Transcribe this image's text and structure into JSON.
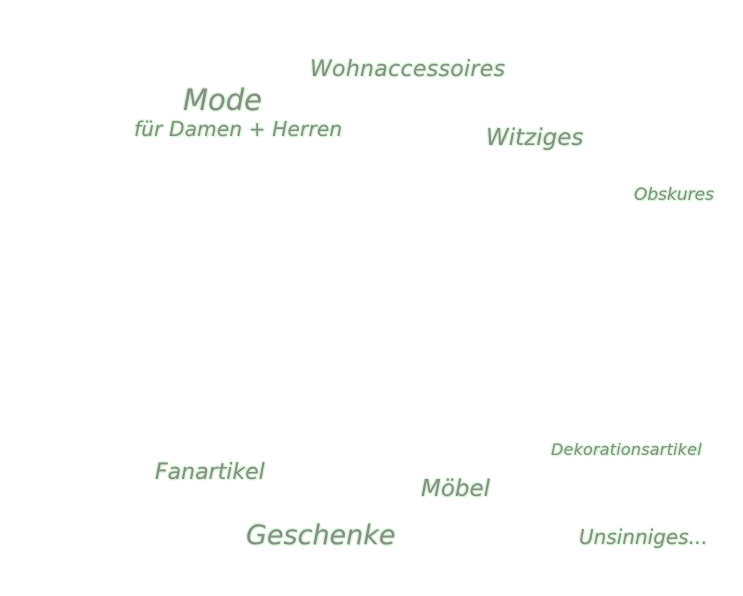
{
  "links": {
    "wohnaccessoires": "Wohnaccessoires",
    "mode": "Mode",
    "mode_sub": "für Damen + Herren",
    "witziges": "Witziges",
    "obskures": "Obskures",
    "dekorationsartikel": "Dekorationsartikel",
    "fanartikel": "Fanartikel",
    "moebel": "Möbel",
    "geschenke": "Geschenke",
    "unsinniges": "Unsinniges..."
  },
  "colors": {
    "text": "#8a8a8a",
    "glow": "#c8f0c8",
    "background": "#ffffff"
  }
}
